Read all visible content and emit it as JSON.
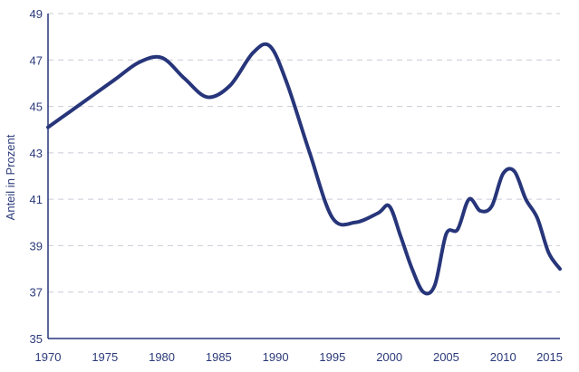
{
  "chart_data": {
    "type": "line",
    "title": "",
    "xlabel": "",
    "ylabel": "Anteil in Prozent",
    "xlim": [
      1970,
      2015
    ],
    "ylim": [
      35,
      49
    ],
    "x_ticks": [
      "1970",
      "1975",
      "1980",
      "1985",
      "1990",
      "1995",
      "2000",
      "2005",
      "2010",
      "2015"
    ],
    "y_ticks": [
      "35",
      "37",
      "39",
      "41",
      "43",
      "45",
      "47",
      "49"
    ],
    "grid": "horizontal-dashed",
    "colors": {
      "line": "#27357a",
      "axis": "#27357a",
      "grid": "#c9ccd6",
      "text": "#2b3a7a"
    },
    "series": [
      {
        "x": [
          1970,
          1972,
          1974,
          1976,
          1978,
          1980,
          1982,
          1984,
          1986,
          1988,
          1989.5,
          1991,
          1993,
          1995,
          1997,
          1999,
          2000,
          2001,
          2002,
          2003,
          2004,
          2005,
          2006,
          2007,
          2008,
          2009,
          2010,
          2011,
          2012,
          2013,
          2014,
          2015
        ],
        "y": [
          44.1,
          44.8,
          45.5,
          46.2,
          46.9,
          47.1,
          46.2,
          45.4,
          45.9,
          47.3,
          47.6,
          46.0,
          43.0,
          40.2,
          40.0,
          40.4,
          40.7,
          39.4,
          38.0,
          37.0,
          37.3,
          39.5,
          39.7,
          41.0,
          40.5,
          40.7,
          42.1,
          42.2,
          41.0,
          40.2,
          38.7,
          38.0
        ]
      }
    ]
  }
}
